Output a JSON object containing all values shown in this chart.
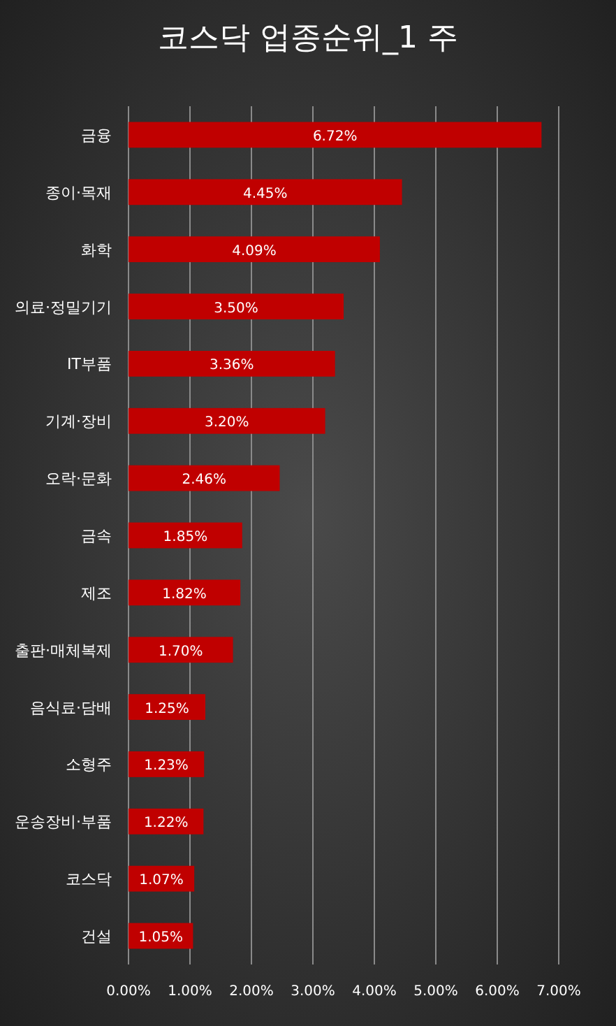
{
  "chart_data": {
    "type": "bar",
    "orientation": "horizontal",
    "title": "코스닥 업종순위_1 주",
    "categories": [
      "금융",
      "종이·목재",
      "화학",
      "의료·정밀기기",
      "IT부품",
      "기계·장비",
      "오락·문화",
      "금속",
      "제조",
      "출판·매체복제",
      "음식료·담배",
      "소형주",
      "운송장비·부품",
      "코스닥",
      "건설"
    ],
    "values": [
      6.72,
      4.45,
      4.09,
      3.5,
      3.36,
      3.2,
      2.46,
      1.85,
      1.82,
      1.7,
      1.25,
      1.23,
      1.22,
      1.07,
      1.05
    ],
    "value_labels": [
      "6.72%",
      "4.45%",
      "4.09%",
      "3.50%",
      "3.36%",
      "3.20%",
      "2.46%",
      "1.85%",
      "1.82%",
      "1.70%",
      "1.25%",
      "1.23%",
      "1.22%",
      "1.07%",
      "1.05%"
    ],
    "color": "#c00000",
    "xlim": [
      0,
      7
    ],
    "xticks": [
      {
        "value": 0,
        "label": "0.00%"
      },
      {
        "value": 1,
        "label": "1.00%"
      },
      {
        "value": 2,
        "label": "2.00%"
      },
      {
        "value": 3,
        "label": "3.00%"
      },
      {
        "value": 4,
        "label": "4.00%"
      },
      {
        "value": 5,
        "label": "5.00%"
      },
      {
        "value": 6,
        "label": "6.00%"
      },
      {
        "value": 7,
        "label": "7.00%"
      }
    ],
    "grid": "x"
  }
}
